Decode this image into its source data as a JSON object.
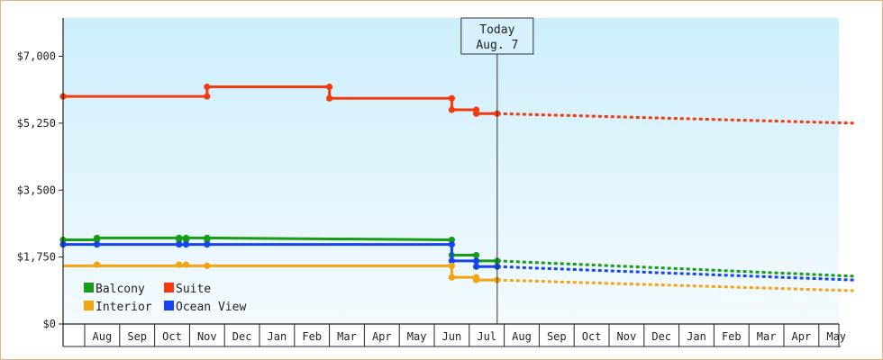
{
  "chart_data": {
    "type": "line",
    "colors": {
      "Balcony": "#169c16",
      "Suite": "#f23a0e",
      "Interior": "#f5a213",
      "Ocean View": "#1444f0",
      "plot_bg_top": "#cdeefb",
      "plot_bg_bottom": "#f4fbfe",
      "border": "#e8b27a"
    },
    "y_ticks": [
      {
        "value": 0,
        "label": "$0"
      },
      {
        "value": 1750,
        "label": "$1,750"
      },
      {
        "value": 3500,
        "label": "$3,500"
      },
      {
        "value": 5250,
        "label": "$5,250"
      },
      {
        "value": 7000,
        "label": "$7,000"
      }
    ],
    "ylim": [
      0,
      8000
    ],
    "xlim": [
      0,
      23
    ],
    "month_labels": [
      {
        "label": "Aug",
        "x": 1
      },
      {
        "label": "Sep",
        "x": 2
      },
      {
        "label": "Oct",
        "x": 3
      },
      {
        "label": "Nov",
        "x": 4
      },
      {
        "label": "Dec",
        "x": 5
      },
      {
        "label": "Jan",
        "x": 6
      },
      {
        "label": "Feb",
        "x": 7
      },
      {
        "label": "Mar",
        "x": 8
      },
      {
        "label": "Apr",
        "x": 9
      },
      {
        "label": "May",
        "x": 10
      },
      {
        "label": "Jun",
        "x": 11
      },
      {
        "label": "Jul",
        "x": 12
      },
      {
        "label": "Aug",
        "x": 13
      },
      {
        "label": "Sep",
        "x": 14
      },
      {
        "label": "Oct",
        "x": 15
      },
      {
        "label": "Nov",
        "x": 16
      },
      {
        "label": "Dec",
        "x": 17
      },
      {
        "label": "Jan",
        "x": 18
      },
      {
        "label": "Feb",
        "x": 19
      },
      {
        "label": "Mar",
        "x": 20
      },
      {
        "label": "Apr",
        "x": 21
      },
      {
        "label": "May",
        "x": 22
      }
    ],
    "today": {
      "line1": "Today",
      "line2": "Aug. 7",
      "x": 12.8
    },
    "series": [
      {
        "name": "Suite",
        "points": [
          [
            0,
            5950
          ],
          [
            4.5,
            5950
          ],
          [
            4.5,
            6200
          ],
          [
            8,
            6200
          ],
          [
            8,
            5900
          ],
          [
            11.5,
            5900
          ],
          [
            11.5,
            5600
          ],
          [
            12.2,
            5600
          ],
          [
            12.2,
            5500
          ],
          [
            12.8,
            5500
          ]
        ],
        "markers": [
          [
            0,
            5950
          ],
          [
            4.5,
            5950
          ],
          [
            4.5,
            6200
          ],
          [
            8,
            6200
          ],
          [
            8,
            5900
          ],
          [
            11.5,
            5900
          ],
          [
            11.5,
            5600
          ],
          [
            12.2,
            5600
          ],
          [
            12.2,
            5500
          ],
          [
            12.8,
            5500
          ]
        ],
        "forecast": [
          [
            12.8,
            5500
          ],
          [
            23,
            5250
          ]
        ]
      },
      {
        "name": "Balcony",
        "points": [
          [
            0,
            2200
          ],
          [
            1.35,
            2200
          ],
          [
            1.35,
            2250
          ],
          [
            3.7,
            2250
          ],
          [
            3.7,
            2250
          ],
          [
            3.9,
            2250
          ],
          [
            4.5,
            2250
          ],
          [
            11.5,
            2200
          ],
          [
            11.5,
            1800
          ],
          [
            12.2,
            1800
          ],
          [
            12.2,
            1650
          ],
          [
            12.8,
            1650
          ]
        ],
        "markers": [
          [
            0,
            2200
          ],
          [
            1.35,
            2200
          ],
          [
            1.35,
            2250
          ],
          [
            3.7,
            2200
          ],
          [
            3.7,
            2250
          ],
          [
            3.9,
            2200
          ],
          [
            3.9,
            2250
          ],
          [
            4.5,
            2200
          ],
          [
            4.5,
            2250
          ],
          [
            11.5,
            2200
          ],
          [
            11.5,
            1800
          ],
          [
            12.2,
            1800
          ],
          [
            12.2,
            1650
          ],
          [
            12.8,
            1650
          ]
        ],
        "forecast": [
          [
            12.8,
            1650
          ],
          [
            23,
            1250
          ]
        ]
      },
      {
        "name": "Ocean View",
        "points": [
          [
            0,
            2080
          ],
          [
            11.5,
            2080
          ],
          [
            11.5,
            1650
          ],
          [
            12.2,
            1650
          ],
          [
            12.2,
            1500
          ],
          [
            12.8,
            1500
          ]
        ],
        "markers": [
          [
            0,
            2080
          ],
          [
            1.35,
            2080
          ],
          [
            3.7,
            2080
          ],
          [
            3.9,
            2080
          ],
          [
            4.5,
            2080
          ],
          [
            11.5,
            2080
          ],
          [
            11.5,
            1650
          ],
          [
            12.2,
            1650
          ],
          [
            12.2,
            1500
          ],
          [
            12.8,
            1500
          ]
        ],
        "forecast": [
          [
            12.8,
            1500
          ],
          [
            23,
            1150
          ]
        ]
      },
      {
        "name": "Interior",
        "points": [
          [
            0,
            1520
          ],
          [
            11.5,
            1520
          ],
          [
            11.5,
            1220
          ],
          [
            12.2,
            1220
          ],
          [
            12.2,
            1150
          ],
          [
            12.8,
            1150
          ]
        ],
        "markers": [
          [
            1.35,
            1550
          ],
          [
            3.7,
            1550
          ],
          [
            3.9,
            1550
          ],
          [
            4.5,
            1520
          ],
          [
            11.5,
            1520
          ],
          [
            11.5,
            1220
          ],
          [
            12.2,
            1220
          ],
          [
            12.2,
            1150
          ],
          [
            12.8,
            1150
          ]
        ],
        "forecast": [
          [
            12.8,
            1150
          ],
          [
            23,
            870
          ]
        ]
      }
    ],
    "legend": [
      {
        "name": "Balcony",
        "label": "Balcony"
      },
      {
        "name": "Suite",
        "label": "Suite"
      },
      {
        "name": "Interior",
        "label": "Interior"
      },
      {
        "name": "Ocean View",
        "label": "Ocean View"
      }
    ],
    "legend_position": "bottom-left",
    "grid": false
  }
}
